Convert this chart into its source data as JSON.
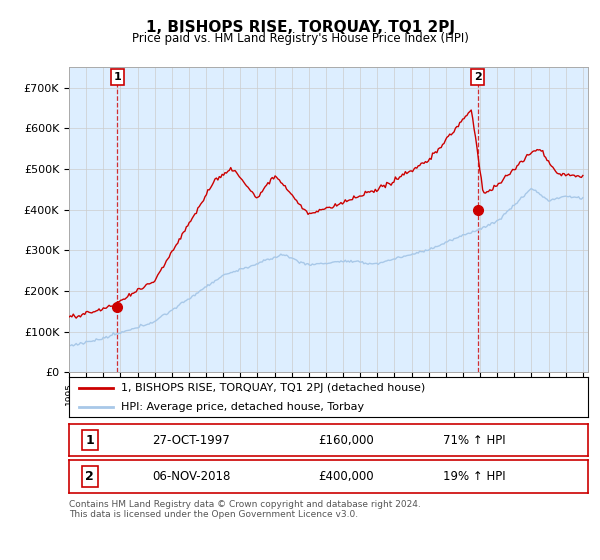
{
  "title": "1, BISHOPS RISE, TORQUAY, TQ1 2PJ",
  "subtitle": "Price paid vs. HM Land Registry's House Price Index (HPI)",
  "ylim": [
    0,
    750000
  ],
  "yticks": [
    0,
    100000,
    200000,
    300000,
    400000,
    500000,
    600000,
    700000
  ],
  "ytick_labels": [
    "£0",
    "£100K",
    "£200K",
    "£300K",
    "£400K",
    "£500K",
    "£600K",
    "£700K"
  ],
  "hpi_color": "#a8c8e8",
  "price_color": "#cc0000",
  "grid_color": "#cccccc",
  "chart_bg_color": "#ddeeff",
  "background_color": "#ffffff",
  "legend_label_price": "1, BISHOPS RISE, TORQUAY, TQ1 2PJ (detached house)",
  "legend_label_hpi": "HPI: Average price, detached house, Torbay",
  "annotation1_label": "1",
  "annotation1_date": "27-OCT-1997",
  "annotation1_price": "£160,000",
  "annotation1_hpi": "71% ↑ HPI",
  "annotation2_label": "2",
  "annotation2_date": "06-NOV-2018",
  "annotation2_price": "£400,000",
  "annotation2_hpi": "19% ↑ HPI",
  "footer": "Contains HM Land Registry data © Crown copyright and database right 2024.\nThis data is licensed under the Open Government Licence v3.0.",
  "sale1_year": 1997.82,
  "sale1_price": 160000,
  "sale2_year": 2018.85,
  "sale2_price": 400000
}
